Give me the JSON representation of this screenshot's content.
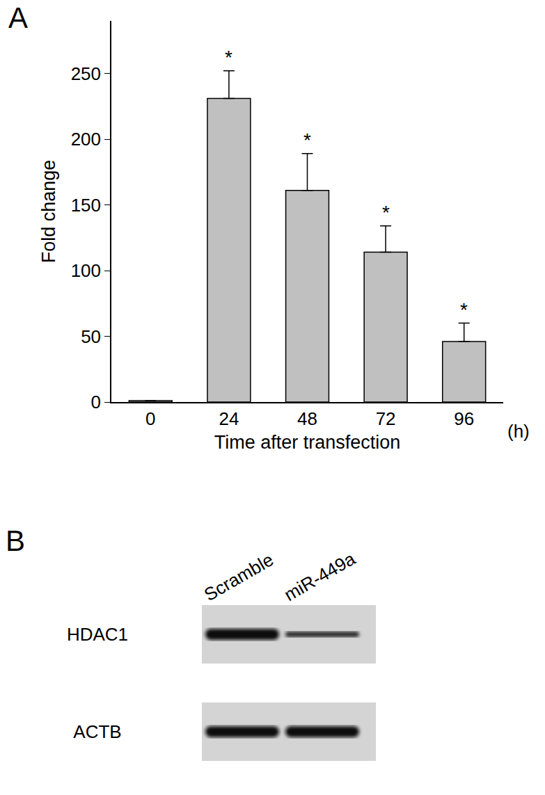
{
  "chart_data": {
    "type": "bar",
    "panel_label": "A",
    "categories": [
      "0",
      "24",
      "48",
      "72",
      "96"
    ],
    "values": [
      1,
      231,
      161,
      114,
      46
    ],
    "error": [
      0,
      21,
      28,
      20,
      14
    ],
    "annotations": [
      {
        "category": "24",
        "text": "*"
      },
      {
        "category": "48",
        "text": "*"
      },
      {
        "category": "72",
        "text": "*"
      },
      {
        "category": "96",
        "text": "*"
      }
    ],
    "x_label": "Time after transfection",
    "x_unit": "(h)",
    "y_label": "Fold change",
    "ylim": [
      0,
      290
    ],
    "yticks": [
      0,
      50,
      100,
      150,
      200,
      250
    ],
    "color": "#c0c0c0",
    "grid": false
  },
  "panel_b": {
    "panel_label": "B",
    "lanes": [
      "Scramble",
      "miR-449a"
    ],
    "rows": [
      "HDAC1",
      "ACTB"
    ]
  }
}
